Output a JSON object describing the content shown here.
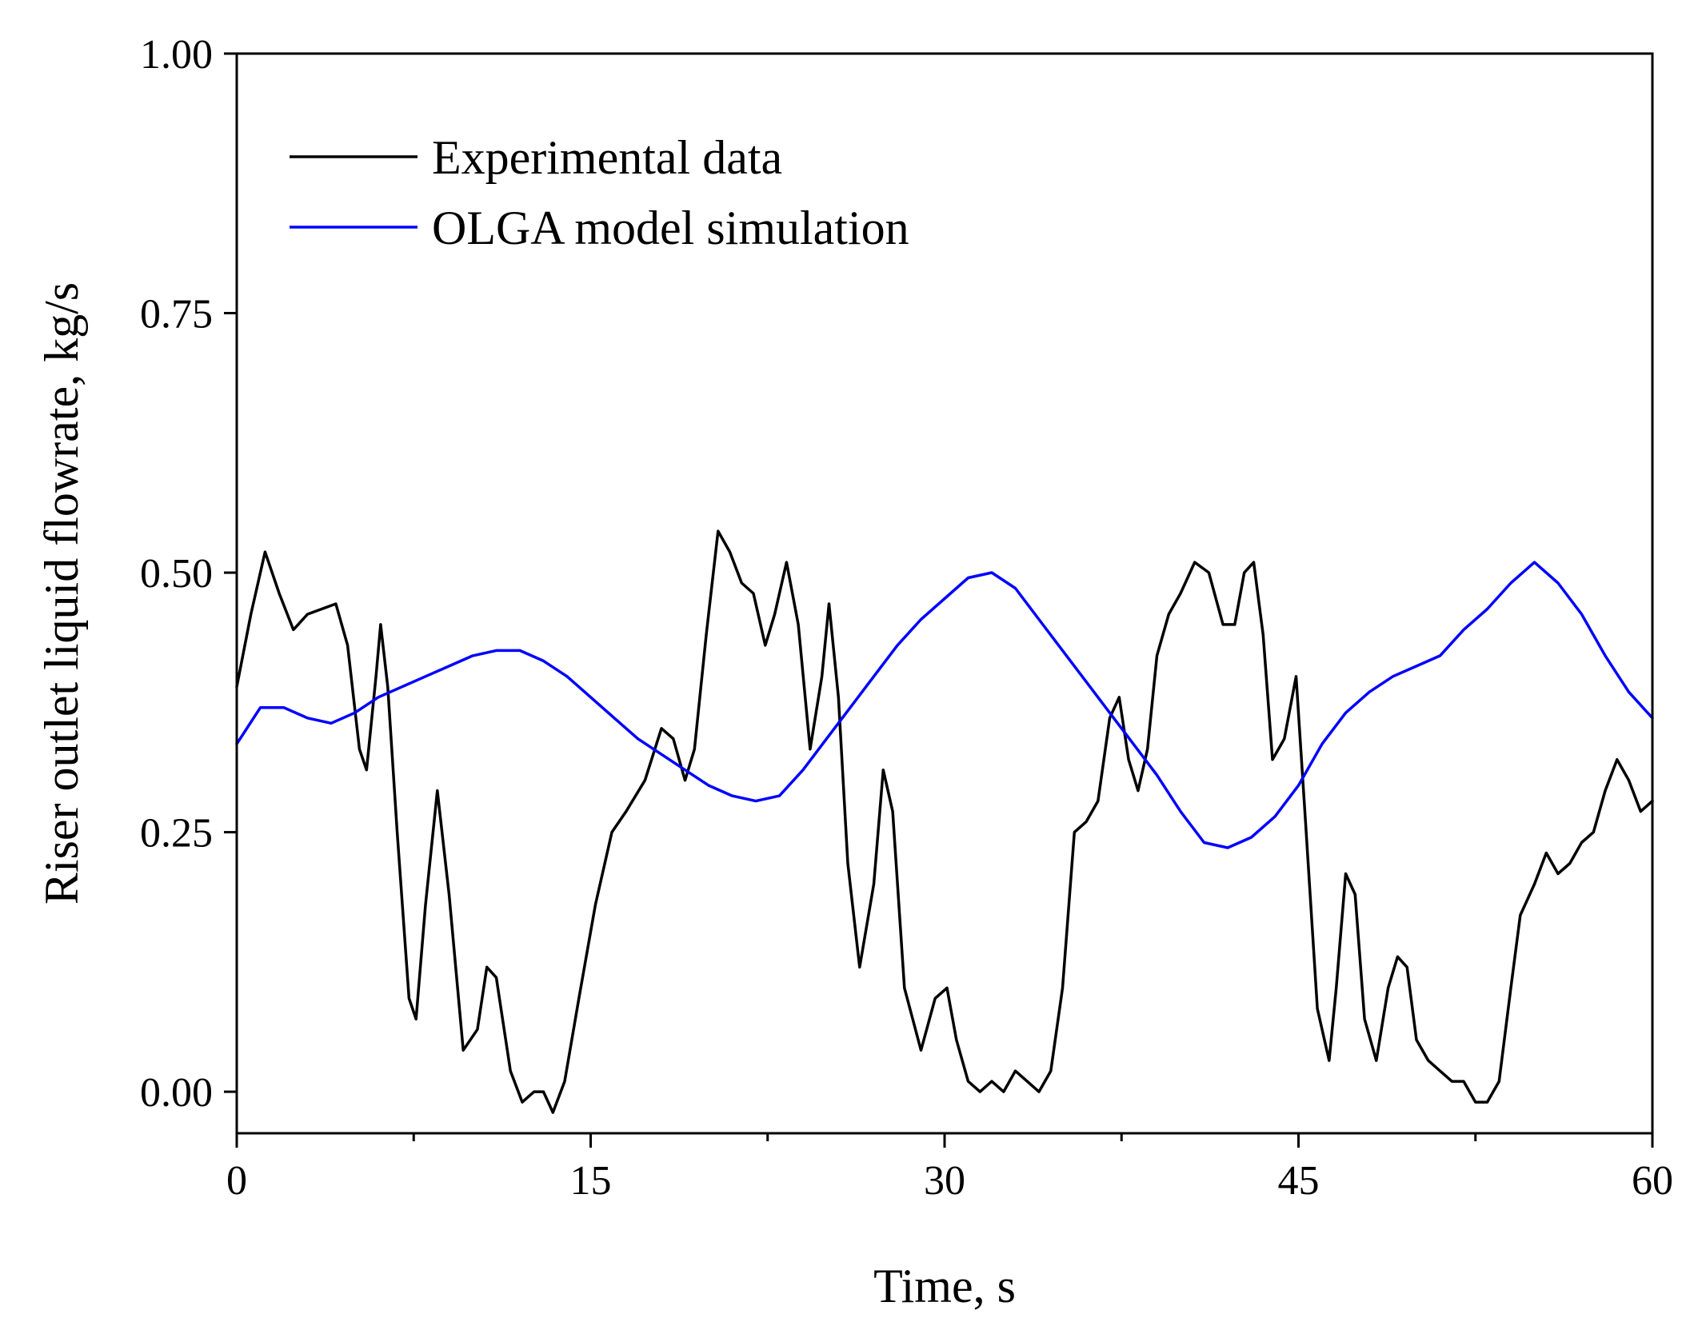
{
  "chart_data": {
    "type": "line",
    "title": "",
    "xlabel": "Time, s",
    "ylabel": "Riser outlet liquid flowrate, kg/s",
    "xlim": [
      0,
      60
    ],
    "ylim": [
      -0.04,
      1.0
    ],
    "xticks": [
      0,
      15,
      30,
      45,
      60
    ],
    "xtick_labels": [
      "0",
      "15",
      "30",
      "45",
      "60"
    ],
    "xminor": [
      7.5,
      22.5,
      37.5,
      52.5
    ],
    "yticks": [
      0,
      0.25,
      0.5,
      0.75,
      1.0
    ],
    "ytick_labels": [
      "0.00",
      "0.25",
      "0.50",
      "0.75",
      "1.00"
    ],
    "grid": false,
    "legend_position": "top-left",
    "colors": {
      "experimental": "#000000",
      "olga": "#0000ff"
    },
    "series": [
      {
        "name": "Experimental data",
        "color": "#000000",
        "x": [
          0,
          0.6,
          1.2,
          1.8,
          2.4,
          3.0,
          3.6,
          4.2,
          4.7,
          5.2,
          5.5,
          5.9,
          6.1,
          6.4,
          6.8,
          7.3,
          7.6,
          8.0,
          8.5,
          9.0,
          9.6,
          10.2,
          10.6,
          11.0,
          11.6,
          12.1,
          12.6,
          13.0,
          13.4,
          13.9,
          14.5,
          15.2,
          15.9,
          16.5,
          17.3,
          18.0,
          18.5,
          19.0,
          19.4,
          19.9,
          20.4,
          20.9,
          21.4,
          21.9,
          22.4,
          22.8,
          23.3,
          23.8,
          24.3,
          24.8,
          25.1,
          25.5,
          25.9,
          26.4,
          27.0,
          27.4,
          27.8,
          28.3,
          29.0,
          29.6,
          30.1,
          30.5,
          31.0,
          31.5,
          32.0,
          32.5,
          33.0,
          33.5,
          34.0,
          34.5,
          35.0,
          35.5,
          36.0,
          36.5,
          37.0,
          37.4,
          37.8,
          38.2,
          38.6,
          39.0,
          39.5,
          40.0,
          40.6,
          41.2,
          41.8,
          42.3,
          42.7,
          43.1,
          43.5,
          43.9,
          44.4,
          44.9,
          45.3,
          45.8,
          46.3,
          46.6,
          47.0,
          47.4,
          47.8,
          48.3,
          48.8,
          49.2,
          49.6,
          50.0,
          50.5,
          51.0,
          51.5,
          52.0,
          52.5,
          53.0,
          53.5,
          54.0,
          54.4,
          55.0,
          55.5,
          56.0,
          56.5,
          57.0,
          57.5,
          58.0,
          58.5,
          59.0,
          59.5,
          60.0
        ],
        "y": [
          0.39,
          0.46,
          0.52,
          0.48,
          0.445,
          0.46,
          0.465,
          0.47,
          0.43,
          0.33,
          0.31,
          0.4,
          0.45,
          0.39,
          0.25,
          0.09,
          0.07,
          0.18,
          0.29,
          0.19,
          0.04,
          0.06,
          0.12,
          0.11,
          0.02,
          -0.01,
          0.0,
          0.0,
          -0.02,
          0.01,
          0.09,
          0.18,
          0.25,
          0.27,
          0.3,
          0.35,
          0.34,
          0.3,
          0.33,
          0.44,
          0.54,
          0.52,
          0.49,
          0.48,
          0.43,
          0.46,
          0.51,
          0.45,
          0.33,
          0.4,
          0.47,
          0.38,
          0.22,
          0.12,
          0.2,
          0.31,
          0.27,
          0.1,
          0.04,
          0.09,
          0.1,
          0.05,
          0.01,
          0.0,
          0.01,
          0.0,
          0.02,
          0.01,
          0.0,
          0.02,
          0.1,
          0.25,
          0.26,
          0.28,
          0.36,
          0.38,
          0.32,
          0.29,
          0.33,
          0.42,
          0.46,
          0.48,
          0.51,
          0.5,
          0.45,
          0.45,
          0.5,
          0.51,
          0.44,
          0.32,
          0.34,
          0.4,
          0.26,
          0.08,
          0.03,
          0.1,
          0.21,
          0.19,
          0.07,
          0.03,
          0.1,
          0.13,
          0.12,
          0.05,
          0.03,
          0.02,
          0.01,
          0.01,
          -0.01,
          -0.01,
          0.01,
          0.1,
          0.17,
          0.2,
          0.23,
          0.21,
          0.22,
          0.24,
          0.25,
          0.29,
          0.32,
          0.3,
          0.27,
          0.28
        ]
      },
      {
        "name": "OLGA model simulation",
        "color": "#0000ff",
        "x": [
          0,
          1.0,
          2.0,
          3.0,
          4.0,
          5.0,
          6.0,
          7.0,
          8.0,
          9.0,
          10.0,
          11.0,
          12.0,
          13.0,
          14.0,
          15.0,
          16.0,
          17.0,
          18.0,
          19.0,
          20.0,
          21.0,
          22.0,
          23.0,
          24.0,
          25.0,
          26.0,
          27.0,
          28.0,
          29.0,
          30.0,
          31.0,
          32.0,
          33.0,
          34.0,
          35.0,
          36.0,
          37.0,
          38.0,
          39.0,
          40.0,
          41.0,
          42.0,
          43.0,
          44.0,
          45.0,
          46.0,
          47.0,
          48.0,
          49.0,
          50.0,
          51.0,
          52.0,
          53.0,
          54.0,
          55.0,
          56.0,
          57.0,
          58.0,
          59.0,
          60.0
        ],
        "y": [
          0.335,
          0.37,
          0.37,
          0.36,
          0.355,
          0.365,
          0.38,
          0.39,
          0.4,
          0.41,
          0.42,
          0.425,
          0.425,
          0.415,
          0.4,
          0.38,
          0.36,
          0.34,
          0.325,
          0.31,
          0.295,
          0.285,
          0.28,
          0.285,
          0.31,
          0.34,
          0.37,
          0.4,
          0.43,
          0.455,
          0.475,
          0.495,
          0.5,
          0.485,
          0.455,
          0.425,
          0.395,
          0.365,
          0.335,
          0.305,
          0.27,
          0.24,
          0.235,
          0.245,
          0.265,
          0.295,
          0.335,
          0.365,
          0.385,
          0.4,
          0.41,
          0.42,
          0.445,
          0.465,
          0.49,
          0.51,
          0.49,
          0.46,
          0.42,
          0.385,
          0.36
        ]
      }
    ]
  }
}
